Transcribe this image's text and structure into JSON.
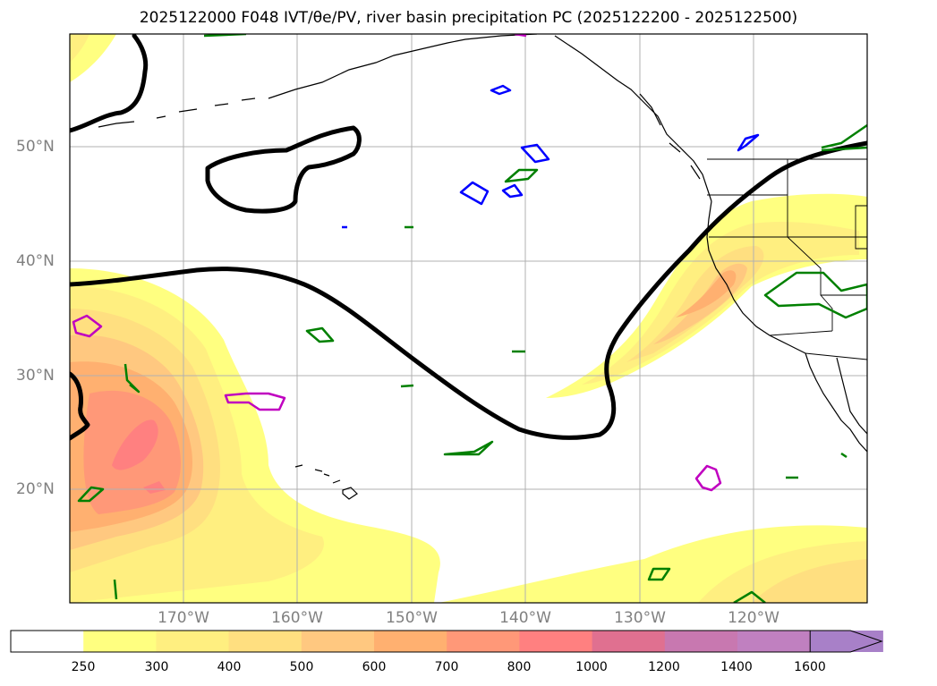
{
  "title": "2025122000 F048 IVT/θe/PV, river basin precipitation PC (2025122200 - 2025122500)",
  "map": {
    "lat_labels": [
      "50°N",
      "40°N",
      "30°N",
      "20°N"
    ],
    "lon_labels": [
      "170°W",
      "160°W",
      "150°W",
      "140°W",
      "130°W",
      "120°W"
    ],
    "gridlines": true
  },
  "colorbar": {
    "ticks": [
      "250",
      "300",
      "400",
      "500",
      "600",
      "700",
      "800",
      "1000",
      "1200",
      "1400",
      "1600"
    ],
    "colors": [
      "#ffffff",
      "#ffff80",
      "#ffef80",
      "#ffdf80",
      "#ffc880",
      "#ffb070",
      "#ff9878",
      "#ff8080",
      "#e07090",
      "#c878b0",
      "#c080c0",
      "#a880c8"
    ],
    "extend": "max"
  },
  "colors": {
    "theta_contour": "#000000",
    "pv_blue": "#0000ff",
    "pv_green": "#008000",
    "pv_magenta": "#c000c0",
    "coastline": "#000000",
    "grid": "#b0b0b0",
    "label": "#808080"
  }
}
